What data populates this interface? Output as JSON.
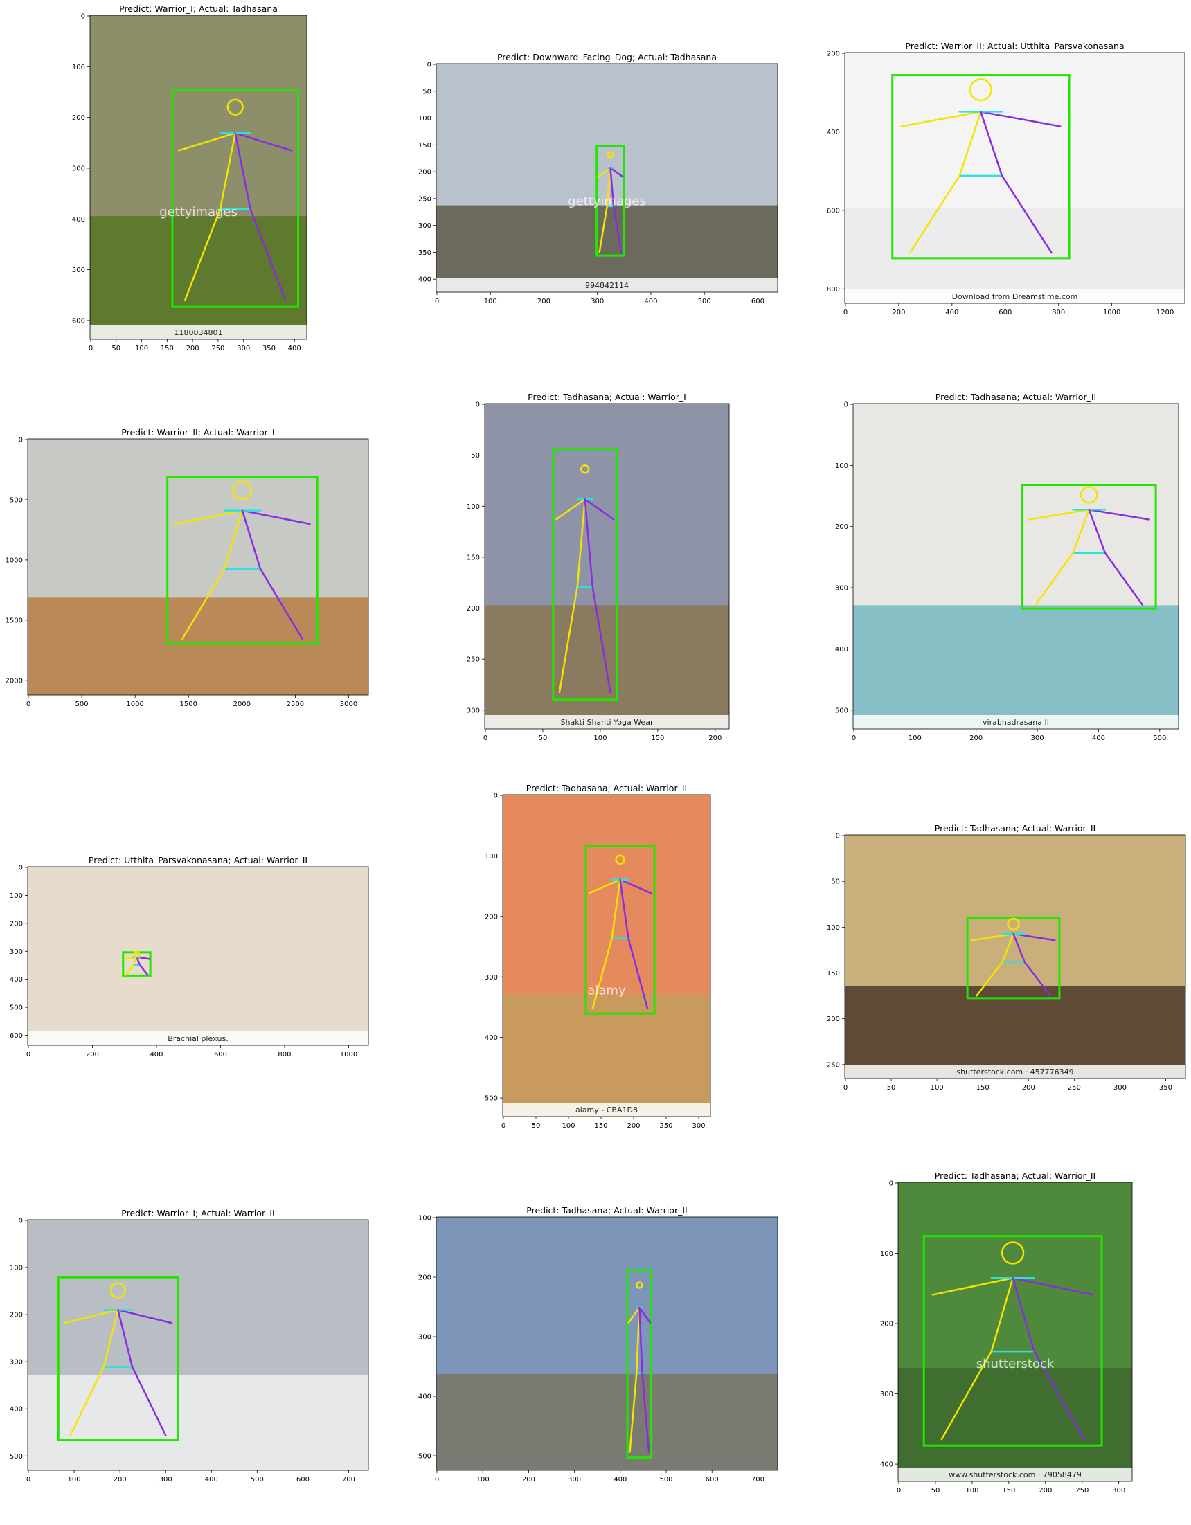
{
  "panels": [
    {
      "title": "Predict: Warrior_I; Actual: Tadhasana",
      "x_ticks": [
        "0",
        "50",
        "100",
        "150",
        "200",
        "250",
        "300",
        "350",
        "400"
      ],
      "y_ticks": [
        "0",
        "100",
        "200",
        "300",
        "400",
        "500",
        "600"
      ],
      "bg": "#8c8f6a",
      "ground": "#5d7a2e",
      "watermark": "gettyimages",
      "caption": "1180034801"
    },
    {
      "title": "Predict: Downward_Facing_Dog; Actual: Tadhasana",
      "x_ticks": [
        "0",
        "100",
        "200",
        "300",
        "400",
        "500",
        "600"
      ],
      "y_ticks": [
        "0",
        "50",
        "100",
        "150",
        "200",
        "250",
        "300",
        "350",
        "400"
      ],
      "bg": "#b9c2cc",
      "ground": "#6c6a5c",
      "watermark": "gettyimages",
      "caption": "994842114"
    },
    {
      "title": "Predict: Warrior_II; Actual: Utthita_Parsvakonasana",
      "x_ticks": [
        "0",
        "200",
        "400",
        "600",
        "800",
        "1000",
        "1200"
      ],
      "y_ticks": [
        "200",
        "400",
        "600",
        "800"
      ],
      "bg": "#f4f4f4",
      "ground": "#ececec",
      "watermark": "",
      "caption": "Download from Dreamstime.com"
    },
    {
      "title": "Predict: Warrior_II; Actual: Warrior_I",
      "x_ticks": [
        "0",
        "500",
        "1000",
        "1500",
        "2000",
        "2500",
        "3000"
      ],
      "y_ticks": [
        "0",
        "500",
        "1000",
        "1500",
        "2000"
      ],
      "bg": "#c7c9c4",
      "ground": "#b98a58",
      "watermark": "",
      "caption": ""
    },
    {
      "title": "Predict: Tadhasana; Actual: Warrior_I",
      "x_ticks": [
        "0",
        "50",
        "100",
        "150",
        "200"
      ],
      "y_ticks": [
        "0",
        "50",
        "100",
        "150",
        "200",
        "250",
        "300"
      ],
      "bg": "#8f93a8",
      "ground": "#8a7a60",
      "watermark": "",
      "caption": "Shakti Shanti Yoga Wear"
    },
    {
      "title": "Predict: Tadhasana; Actual: Warrior_II",
      "x_ticks": [
        "0",
        "100",
        "200",
        "300",
        "400",
        "500"
      ],
      "y_ticks": [
        "0",
        "100",
        "200",
        "300",
        "400",
        "500"
      ],
      "bg": "#e9e7e3",
      "ground": "#86c0c6",
      "watermark": "",
      "caption": "virabhadrasana II"
    },
    {
      "title": "Predict: Utthita_Parsvakonasana; Actual: Warrior_II",
      "x_ticks": [
        "0",
        "200",
        "400",
        "600",
        "800",
        "1000"
      ],
      "y_ticks": [
        "0",
        "100",
        "200",
        "300",
        "400",
        "500",
        "600"
      ],
      "bg": "#e6dccb",
      "ground": "#e6dccb",
      "watermark": "",
      "caption": "Brachial plexus."
    },
    {
      "title": "Predict: Tadhasana; Actual: Warrior_II",
      "x_ticks": [
        "0",
        "50",
        "100",
        "150",
        "200",
        "250",
        "300"
      ],
      "y_ticks": [
        "0",
        "100",
        "200",
        "300",
        "400",
        "500"
      ],
      "bg": "#e58a5c",
      "ground": "#c99a5e",
      "watermark": "alamy",
      "caption": "alamy - CBA1D8"
    },
    {
      "title": "Predict: Tadhasana; Actual: Warrior_II",
      "x_ticks": [
        "0",
        "50",
        "100",
        "150",
        "200",
        "250",
        "300",
        "350"
      ],
      "y_ticks": [
        "0",
        "50",
        "100",
        "150",
        "200",
        "250"
      ],
      "bg": "#c9b07a",
      "ground": "#5e4a35",
      "watermark": "",
      "caption": "shutterstock.com · 457776349"
    },
    {
      "title": "Predict: Warrior_I; Actual: Warrior_II",
      "x_ticks": [
        "0",
        "100",
        "200",
        "300",
        "400",
        "500",
        "600",
        "700"
      ],
      "y_ticks": [
        "0",
        "100",
        "200",
        "300",
        "400",
        "500"
      ],
      "bg": "#b9bec4",
      "ground": "#e7e8ea",
      "watermark": "",
      "caption": ""
    },
    {
      "title": "Predict: Tadhasana; Actual: Warrior_II",
      "x_ticks": [
        "0",
        "100",
        "200",
        "300",
        "400",
        "500",
        "600",
        "700"
      ],
      "y_ticks": [
        "100",
        "200",
        "300",
        "400",
        "500"
      ],
      "bg": "#7c95b8",
      "ground": "#7a7a72",
      "watermark": "",
      "caption": ""
    },
    {
      "title": "Predict: Tadhasana; Actual: Warrior_II",
      "x_ticks": [
        "0",
        "50",
        "100",
        "150",
        "200",
        "250",
        "300"
      ],
      "y_ticks": [
        "0",
        "100",
        "200",
        "300",
        "400"
      ],
      "bg": "#4f8a3c",
      "ground": "#3f6e30",
      "watermark": "shutterstock",
      "caption": "www.shutterstock.com · 79058479"
    }
  ],
  "colors": {
    "box": "#22e600",
    "limb_a": "#f5e400",
    "limb_b": "#8a2be2",
    "limb_c": "#2fe0e0"
  }
}
